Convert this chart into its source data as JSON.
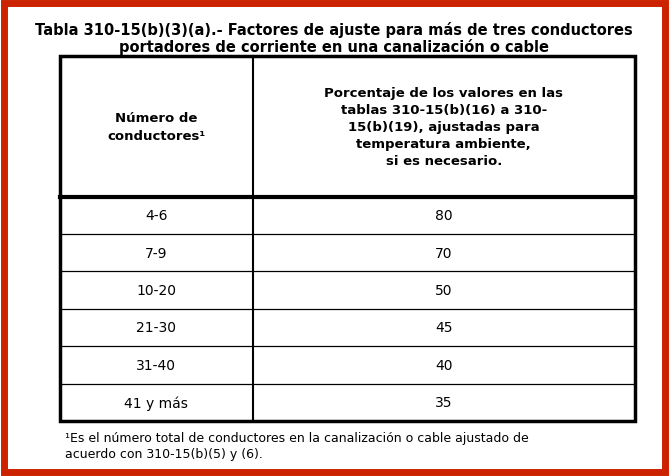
{
  "title_line1": "Tabla 310-15(b)(3)(a).- Factores de ajuste para más de tres conductores",
  "title_line2": "portadores de corriente en una canalización o cable",
  "col1_header": "Número de\nconductores¹",
  "col2_header": "Porcentaje de los valores en las\ntablas 310-15(b)(16) a 310-\n15(b)(19), ajustadas para\ntemperatura ambiente,\nsi es necesario.",
  "rows": [
    [
      "4-6",
      "80"
    ],
    [
      "7-9",
      "70"
    ],
    [
      "10-20",
      "50"
    ],
    [
      "21-30",
      "45"
    ],
    [
      "31-40",
      "40"
    ],
    [
      "41 y más",
      "35"
    ]
  ],
  "footnote_line1": "¹Es el número total de conductores en la canalización o cable ajustado de",
  "footnote_line2": "acuerdo con 310-15(b)(5) y (6).",
  "outer_border_color": "#cc2200",
  "inner_border_color": "#000000",
  "bg_color": "#ffffff",
  "text_color": "#000000",
  "title_fontsize": 10.5,
  "header_fontsize": 9.5,
  "data_fontsize": 10,
  "footnote_fontsize": 9
}
